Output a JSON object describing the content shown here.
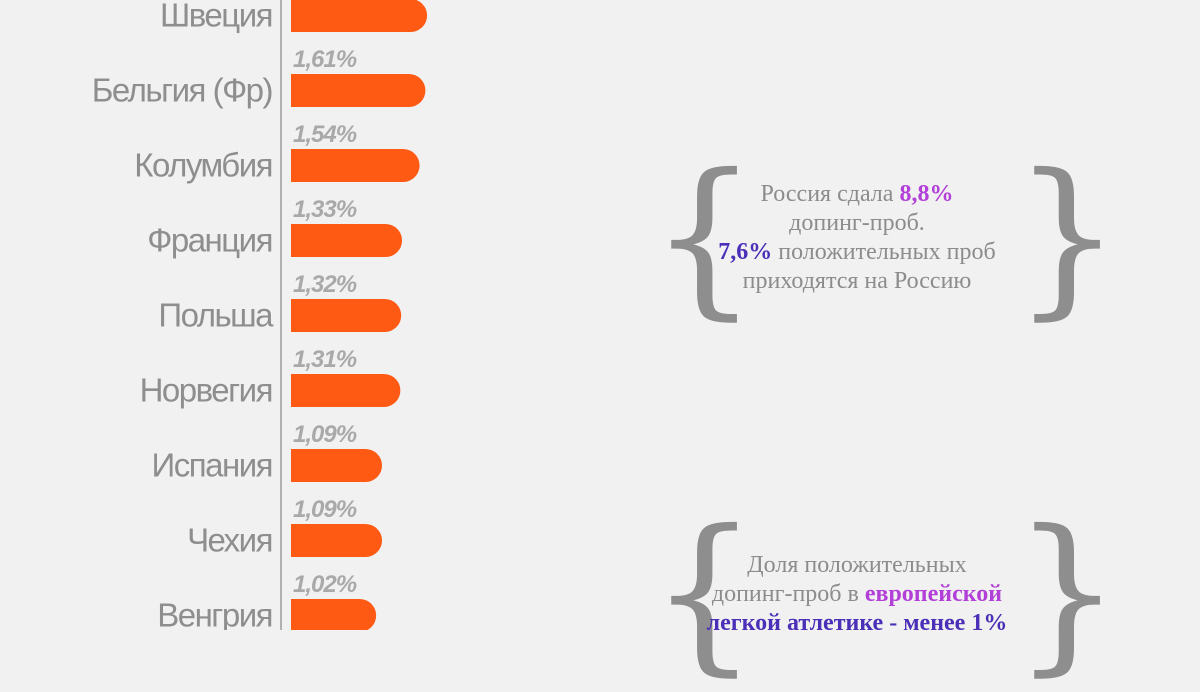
{
  "chart_data": {
    "type": "bar",
    "orientation": "horizontal",
    "categories": [
      "Швеция",
      "Бельгия (Фр)",
      "Колумбия",
      "Франция",
      "Польша",
      "Норвегия",
      "Испания",
      "Чехия",
      "Венгрия"
    ],
    "values": [
      1.63,
      1.61,
      1.54,
      1.33,
      1.32,
      1.31,
      1.09,
      1.09,
      1.02
    ],
    "value_labels": [
      null,
      "1,61%",
      "1,54%",
      "1,33%",
      "1,32%",
      "1,31%",
      "1,09%",
      "1,09%",
      "1,02%"
    ],
    "colors": {
      "bar": "#ff5a14",
      "category_text": "#8e8e8e",
      "value_text": "#a9a9a9",
      "axis": "#9a9a9a",
      "background": "#f1f1f1"
    }
  },
  "notes": {
    "russia": {
      "line1_prefix": "Россия сдала ",
      "line1_highlight": "8,8%",
      "line2": "допинг-проб.",
      "line3_highlight": "7,6%",
      "line3_suffix": " положительных проб",
      "line4": "приходятся на Россию"
    },
    "europe": {
      "line1": "Доля положительных",
      "line2_prefix": "допинг-проб в ",
      "line2_highlight": "европейской",
      "line3_highlight": "легкой атлетике - менее 1%"
    },
    "colors": {
      "purple": "#b23fd8",
      "blue": "#4b2fb8",
      "text": "#8c8c8c"
    }
  }
}
